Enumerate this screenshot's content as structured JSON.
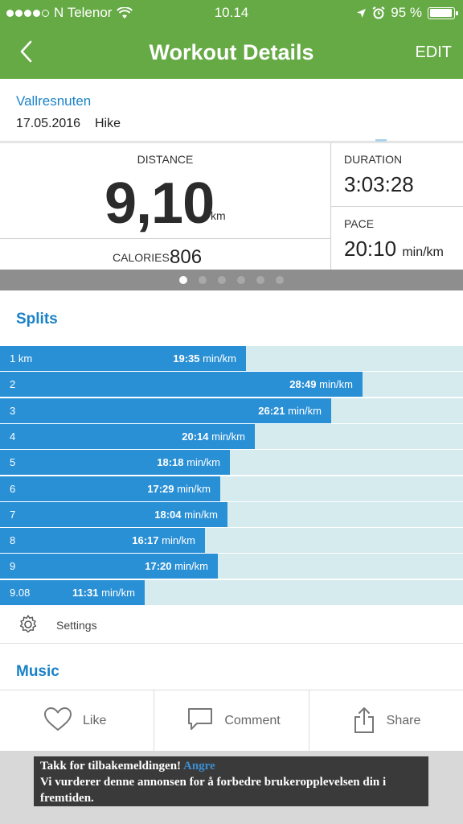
{
  "status_bar": {
    "carrier": "N Telenor",
    "time": "10.14",
    "battery": "95 %",
    "battery_level": 0.95,
    "signal_bars": 4
  },
  "nav": {
    "title": "Workout Details",
    "edit_label": "EDIT"
  },
  "workout": {
    "name": "Vallresnuten",
    "date": "17.05.2016",
    "type": "Hike"
  },
  "stats": {
    "distance_label": "DISTANCE",
    "distance_value": "9,10",
    "distance_unit": "km",
    "calories_label": "CALORIES",
    "calories_value": "806",
    "duration_label": "DURATION",
    "duration_value": "3:03:28",
    "pace_label": "PACE",
    "pace_value": "20:10",
    "pace_unit": "min/km"
  },
  "pager": {
    "pages": 6,
    "active": 0
  },
  "splits": {
    "title": "Splits",
    "unit": "min/km",
    "items": [
      {
        "km": "1 km",
        "pace": "19:35",
        "seconds": 1175
      },
      {
        "km": "2",
        "pace": "28:49",
        "seconds": 1729
      },
      {
        "km": "3",
        "pace": "26:21",
        "seconds": 1581
      },
      {
        "km": "4",
        "pace": "20:14",
        "seconds": 1214
      },
      {
        "km": "5",
        "pace": "18:18",
        "seconds": 1098
      },
      {
        "km": "6",
        "pace": "17:29",
        "seconds": 1049
      },
      {
        "km": "7",
        "pace": "18:04",
        "seconds": 1084
      },
      {
        "km": "8",
        "pace": "16:17",
        "seconds": 977
      },
      {
        "km": "9",
        "pace": "17:20",
        "seconds": 1040
      },
      {
        "km": "9.08",
        "pace": "11:31",
        "seconds": 691
      }
    ],
    "settings_label": "Settings"
  },
  "music": {
    "title": "Music"
  },
  "actions": {
    "like": "Like",
    "comment": "Comment",
    "share": "Share"
  },
  "feedback": {
    "thanks": "Takk for tilbakemeldingen!",
    "undo": "Angre",
    "message": "Vi vurderer denne annonsen for å forbedre brukeropplevelsen din i fremtiden."
  },
  "colors": {
    "header": "#66aa45",
    "accent": "#1a82c8",
    "bar": "#2a90d6",
    "bar_track": "#d5ebee"
  }
}
